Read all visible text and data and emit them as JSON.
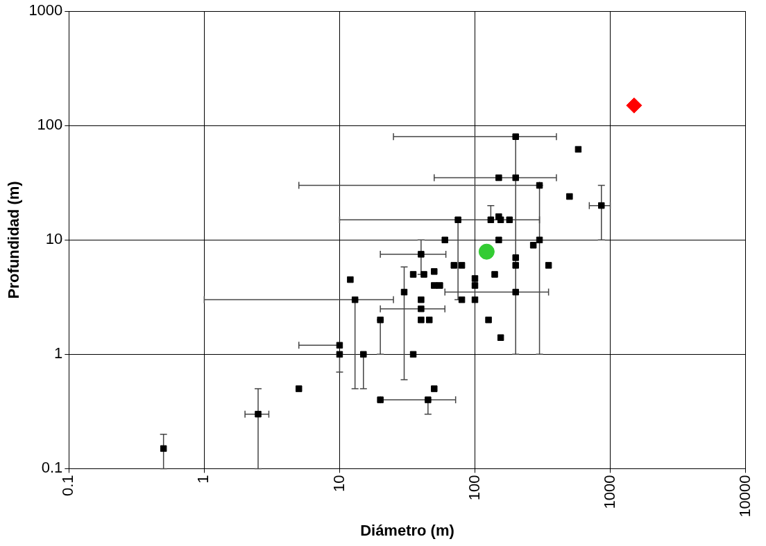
{
  "chart_data": {
    "type": "scatter",
    "xlabel": "Diámetro (m)",
    "ylabel": "Profundidad (m)",
    "log": "xy",
    "grid": true,
    "legend": false,
    "xlim": [
      0.1,
      10000
    ],
    "xticks": [
      0.1,
      1,
      10,
      100,
      1000,
      10000
    ],
    "ylim": [
      0.1,
      1000
    ],
    "yticks": [
      0.1,
      1,
      10,
      100,
      1000
    ],
    "series": [
      {
        "color": "#000000",
        "marker": "square",
        "x": [
          0.5,
          2.5,
          5,
          10,
          10,
          12,
          13,
          15,
          20,
          20,
          30,
          35,
          35,
          42,
          40,
          40,
          40,
          40,
          46,
          45,
          50,
          50,
          50,
          55,
          60,
          70,
          80,
          75,
          80,
          100,
          100,
          100,
          126,
          131,
          140,
          150,
          155,
          180,
          150,
          200,
          200,
          300,
          150,
          300,
          270,
          200,
          200,
          350,
          200,
          155,
          580,
          500,
          860
        ],
        "values": [
          0.15,
          0.3,
          0.5,
          1.2,
          1,
          4.5,
          3,
          1,
          2,
          0.4,
          3.5,
          1,
          5,
          5,
          7.5,
          3,
          2.5,
          2,
          2,
          0.4,
          0.5,
          5.3,
          4,
          4,
          10,
          6,
          6,
          15,
          3,
          4.6,
          4,
          3,
          2,
          15,
          5,
          16,
          15,
          15,
          35,
          35,
          80,
          30,
          10,
          10,
          9,
          7,
          6,
          6,
          3.5,
          1.4,
          62,
          24,
          20
        ],
        "errors": [
          [
            0.1,
            0.2
          ],
          [
            0.1,
            0.5
          ],
          null,
          null,
          [
            0.7,
            1
          ],
          null,
          [
            0.5,
            3
          ],
          [
            0.5,
            1
          ],
          [
            1,
            2
          ],
          null,
          [
            0.6,
            5.8
          ],
          null,
          null,
          null,
          [
            5,
            10
          ],
          null,
          null,
          null,
          null,
          [
            0.3,
            0.4
          ],
          null,
          null,
          null,
          null,
          null,
          null,
          null,
          [
            3,
            15
          ],
          null,
          null,
          null,
          null,
          null,
          [
            15,
            20
          ],
          null,
          null,
          null,
          null,
          null,
          null,
          [
            1,
            80
          ],
          [
            1,
            30
          ],
          null,
          null,
          null,
          null,
          null,
          null,
          null,
          null,
          null,
          null,
          [
            10,
            30
          ]
        ],
        "xerrors": [
          null,
          [
            2,
            3
          ],
          null,
          [
            5,
            10
          ],
          null,
          null,
          [
            1,
            25
          ],
          null,
          null,
          [
            20,
            72
          ],
          null,
          null,
          null,
          null,
          [
            20,
            61
          ],
          null,
          [
            20,
            60
          ],
          null,
          null,
          null,
          null,
          null,
          null,
          null,
          null,
          null,
          null,
          [
            10,
            300
          ],
          null,
          null,
          null,
          null,
          null,
          null,
          null,
          null,
          null,
          null,
          null,
          [
            50,
            400
          ],
          [
            25,
            400
          ],
          [
            5,
            300
          ],
          null,
          null,
          null,
          null,
          null,
          null,
          [
            60,
            350
          ],
          null,
          null,
          null,
          [
            700,
            1000
          ]
        ]
      },
      {
        "color": "#33cc33",
        "marker": "circle",
        "x": [
          122
        ],
        "values": [
          7.9
        ]
      },
      {
        "color": "#ff0000",
        "marker": "diamond",
        "x": [
          1500
        ],
        "values": [
          150
        ]
      }
    ]
  }
}
